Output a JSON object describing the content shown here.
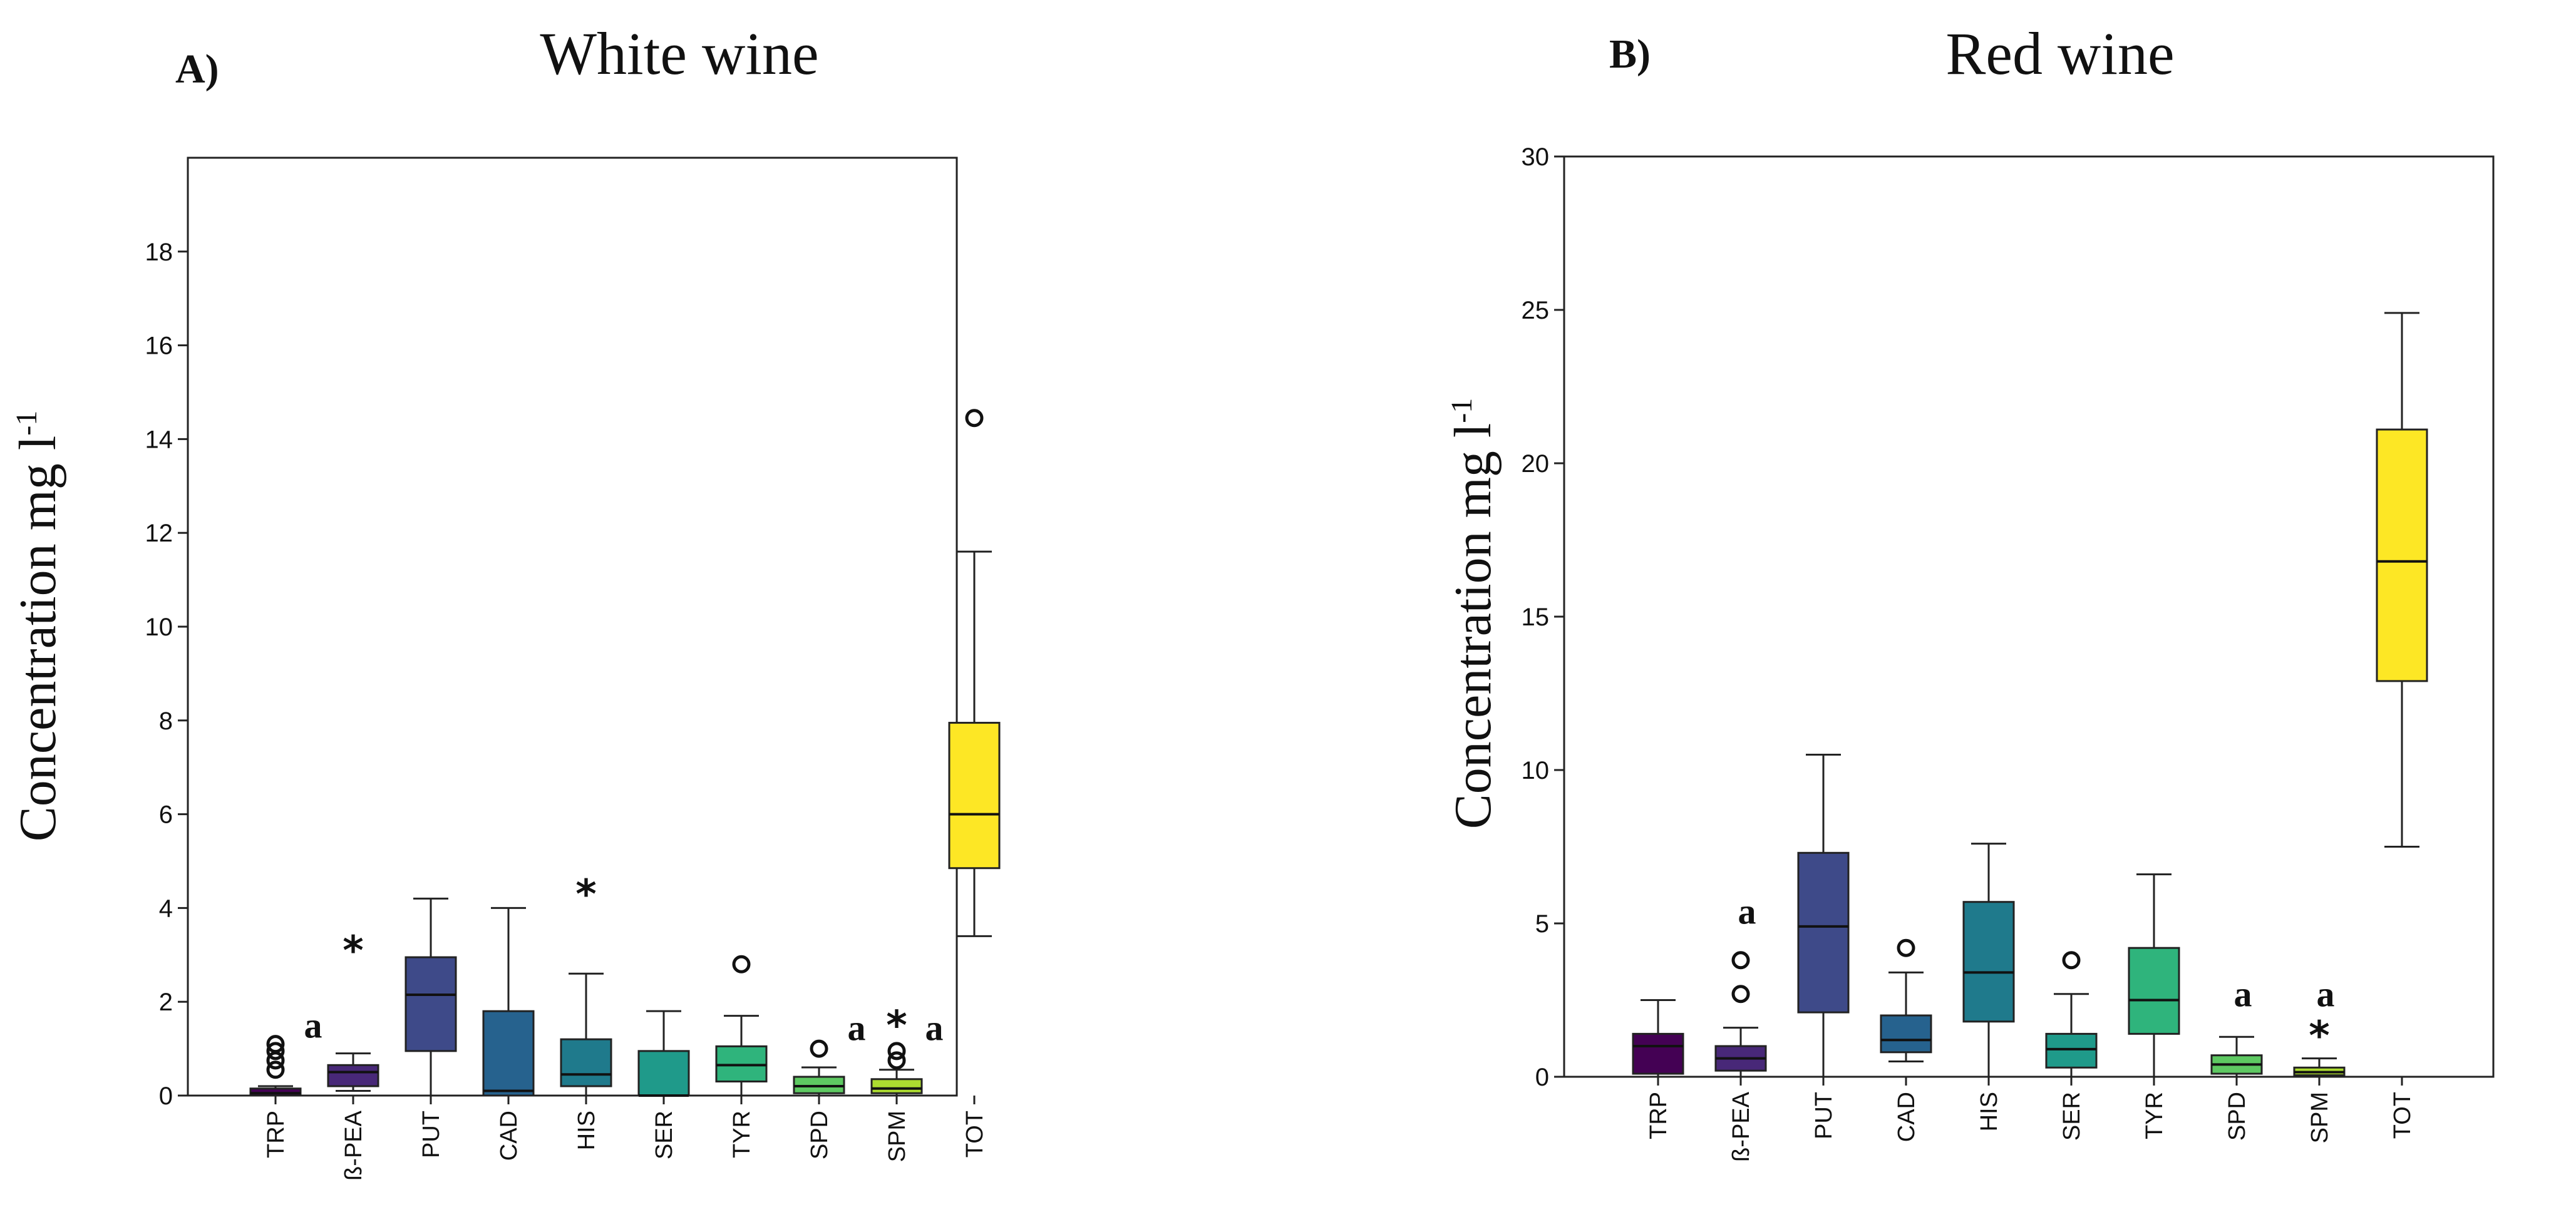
{
  "chart_data": [
    {
      "type": "boxplot",
      "panel": "A)",
      "title": "White wine",
      "ylabel": "Concentration mg l",
      "ylabel_sup": "-1",
      "ylim": [
        0,
        20
      ],
      "yticks": [
        0,
        2,
        4,
        6,
        8,
        10,
        12,
        14,
        16,
        18
      ],
      "categories": [
        "TRP",
        "ß-PEA",
        "PUT",
        "CAD",
        "HIS",
        "SER",
        "TYR",
        "SPD",
        "SPM",
        "TOT"
      ],
      "boxes": [
        {
          "name": "TRP",
          "color": "#440154",
          "min": 0,
          "q1": 0,
          "median": 0.05,
          "q3": 0.15,
          "max": 0.2,
          "outliers": [
            {
              "v": 0.55,
              "m": "circle"
            },
            {
              "v": 0.75,
              "m": "circle"
            },
            {
              "v": 0.95,
              "m": "circle"
            },
            {
              "v": 1.1,
              "m": "circle"
            }
          ],
          "annotation": "a",
          "annotation_v": 1.5
        },
        {
          "name": "ß-PEA",
          "color": "#482878",
          "min": 0.1,
          "q1": 0.2,
          "median": 0.5,
          "q3": 0.65,
          "max": 0.9,
          "outliers": [
            {
              "v": 3.2,
              "m": "star"
            }
          ]
        },
        {
          "name": "PUT",
          "color": "#3e4a89",
          "min": 0,
          "q1": 0.95,
          "median": 2.15,
          "q3": 2.95,
          "max": 4.2,
          "outliers": []
        },
        {
          "name": "CAD",
          "color": "#26628e",
          "min": 0,
          "q1": 0,
          "median": 0.1,
          "q3": 1.8,
          "max": 4.0,
          "outliers": []
        },
        {
          "name": "HIS",
          "color": "#1f7a8c",
          "min": 0,
          "q1": 0.2,
          "median": 0.45,
          "q3": 1.2,
          "max": 2.6,
          "outliers": [
            {
              "v": 4.4,
              "m": "star"
            }
          ]
        },
        {
          "name": "SER",
          "color": "#1f9a8a",
          "min": 0,
          "q1": 0,
          "median": 0,
          "q3": 0.95,
          "max": 1.8,
          "outliers": []
        },
        {
          "name": "TYR",
          "color": "#2fb47c",
          "min": 0,
          "q1": 0.3,
          "median": 0.65,
          "q3": 1.05,
          "max": 1.7,
          "outliers": [
            {
              "v": 2.8,
              "m": "circle"
            }
          ]
        },
        {
          "name": "SPD",
          "color": "#5ec962",
          "min": 0,
          "q1": 0.05,
          "median": 0.2,
          "q3": 0.4,
          "max": 0.6,
          "outliers": [
            {
              "v": 1.0,
              "m": "circle"
            }
          ],
          "annotation": "a",
          "annotation_v": 1.45
        },
        {
          "name": "SPM",
          "color": "#addc30",
          "min": 0,
          "q1": 0.05,
          "median": 0.15,
          "q3": 0.35,
          "max": 0.55,
          "outliers": [
            {
              "v": 0.75,
              "m": "circle"
            },
            {
              "v": 0.95,
              "m": "circle"
            },
            {
              "v": 1.6,
              "m": "star"
            }
          ],
          "annotation": "a",
          "annotation_v": 1.45
        },
        {
          "name": "TOT",
          "color": "#fde725",
          "min": 3.4,
          "q1": 4.85,
          "median": 6.0,
          "q3": 7.95,
          "max": 11.6,
          "outliers": [
            {
              "v": 14.45,
              "m": "circle"
            }
          ]
        }
      ]
    },
    {
      "type": "boxplot",
      "panel": "B)",
      "title": "Red wine",
      "ylabel": "Concentration mg l",
      "ylabel_sup": "-1",
      "ylim": [
        0,
        30
      ],
      "yticks": [
        0,
        5,
        10,
        15,
        20,
        25,
        30
      ],
      "categories": [
        "TRP",
        "ß-PEA",
        "PUT",
        "CAD",
        "HIS",
        "SER",
        "TYR",
        "SPD",
        "SPM",
        "TOT"
      ],
      "boxes": [
        {
          "name": "TRP",
          "color": "#440154",
          "min": 0,
          "q1": 0.1,
          "median": 1.0,
          "q3": 1.4,
          "max": 2.5,
          "outliers": []
        },
        {
          "name": "ß-PEA",
          "color": "#482878",
          "min": 0,
          "q1": 0.2,
          "median": 0.6,
          "q3": 1.0,
          "max": 1.6,
          "outliers": [
            {
              "v": 2.7,
              "m": "circle"
            },
            {
              "v": 3.8,
              "m": "circle"
            }
          ],
          "annotation": "a",
          "annotation_v": 5.4
        },
        {
          "name": "PUT",
          "color": "#3e4a89",
          "min": 0,
          "q1": 2.1,
          "median": 4.9,
          "q3": 7.3,
          "max": 10.5,
          "outliers": []
        },
        {
          "name": "CAD",
          "color": "#26628e",
          "min": 0.5,
          "q1": 0.8,
          "median": 1.2,
          "q3": 2.0,
          "max": 3.4,
          "outliers": [
            {
              "v": 4.2,
              "m": "circle"
            }
          ]
        },
        {
          "name": "HIS",
          "color": "#1f7a8c",
          "min": 0,
          "q1": 1.8,
          "median": 3.4,
          "q3": 5.7,
          "max": 7.6,
          "outliers": []
        },
        {
          "name": "SER",
          "color": "#1f9a8a",
          "min": 0,
          "q1": 0.3,
          "median": 0.9,
          "q3": 1.4,
          "max": 2.7,
          "outliers": [
            {
              "v": 3.8,
              "m": "circle"
            }
          ]
        },
        {
          "name": "TYR",
          "color": "#2fb47c",
          "min": 0,
          "q1": 1.4,
          "median": 2.5,
          "q3": 4.2,
          "max": 6.6,
          "outliers": []
        },
        {
          "name": "SPD",
          "color": "#5ec962",
          "min": 0,
          "q1": 0.1,
          "median": 0.4,
          "q3": 0.7,
          "max": 1.3,
          "outliers": [],
          "annotation": "a",
          "annotation_v": 2.7
        },
        {
          "name": "SPM",
          "color": "#addc30",
          "min": 0,
          "q1": 0.05,
          "median": 0.15,
          "q3": 0.3,
          "max": 0.6,
          "outliers": [
            {
              "v": 1.5,
              "m": "star"
            }
          ],
          "annotation": "a",
          "annotation_v": 2.7
        },
        {
          "name": "TOT",
          "color": "#fde725",
          "min": 7.5,
          "q1": 12.9,
          "median": 16.8,
          "q3": 21.1,
          "max": 24.9,
          "outliers": []
        }
      ]
    }
  ]
}
